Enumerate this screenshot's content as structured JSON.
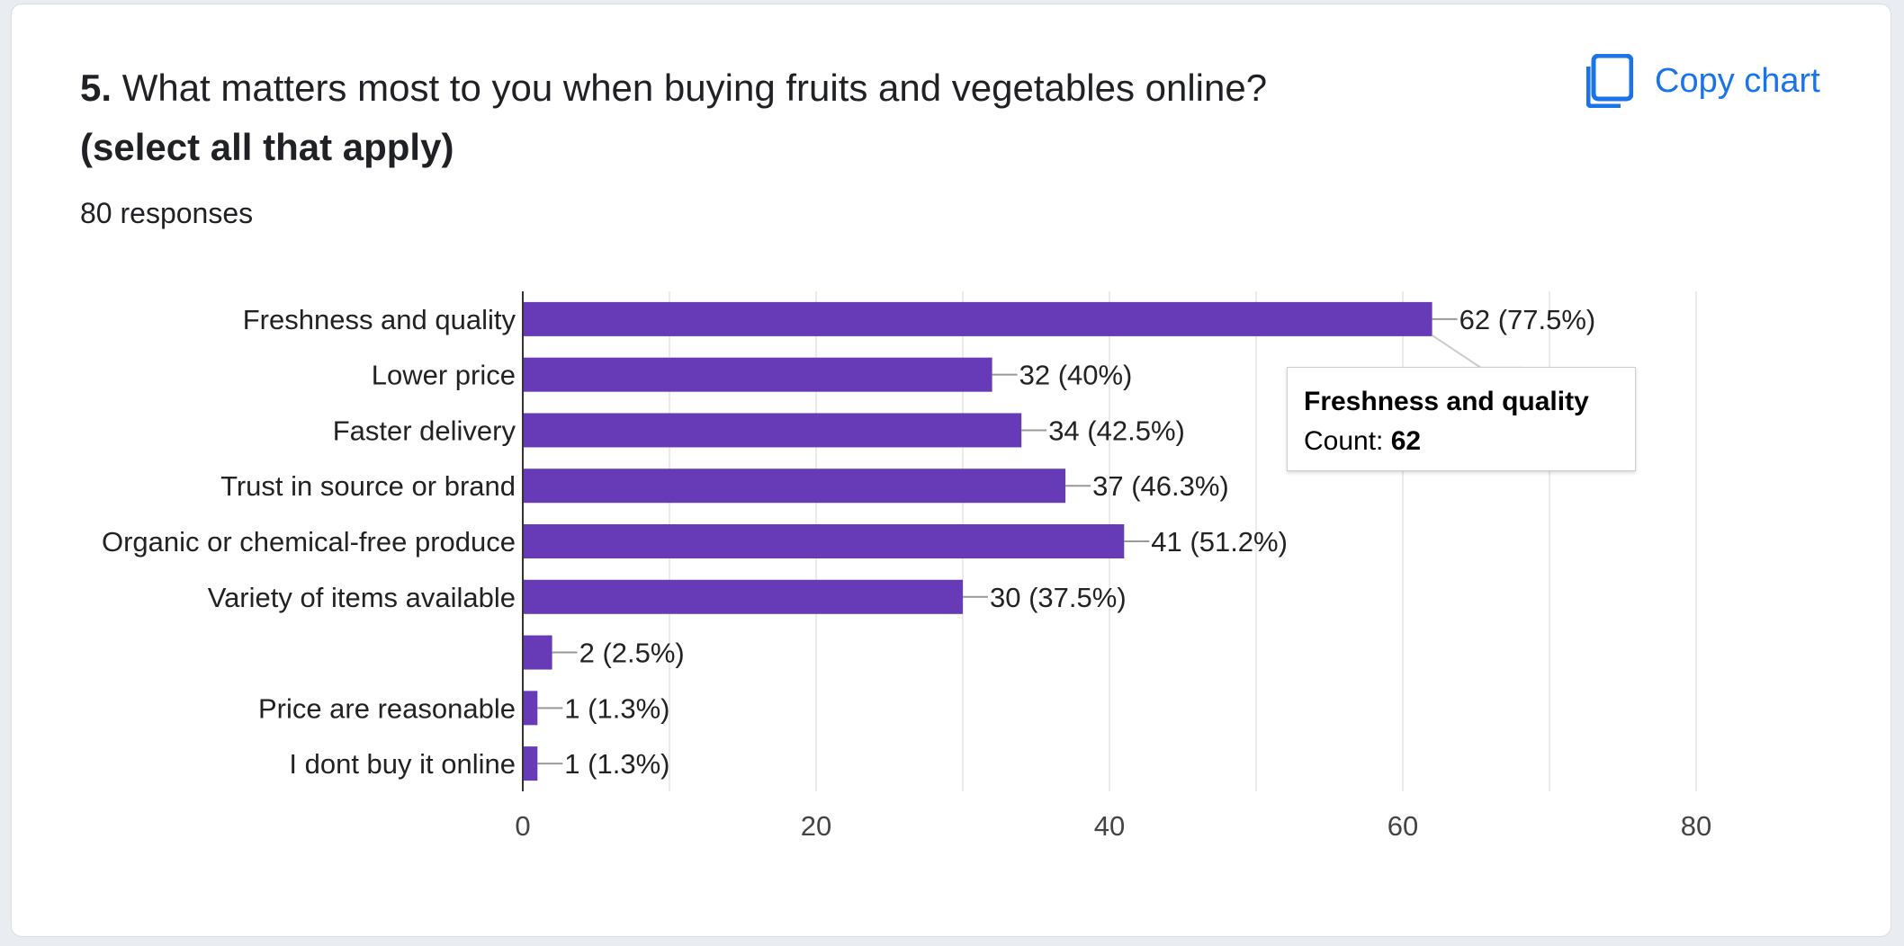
{
  "question": {
    "number": "5.",
    "text": "What matters most to you when buying fruits and vegetables online?",
    "subtext": "(select all that apply)"
  },
  "responses_label": "80 responses",
  "copy_button": {
    "label": "Copy chart",
    "icon": "copy-icon"
  },
  "tooltip": {
    "title": "Freshness and quality",
    "count_label": "Count: ",
    "count_value": "62"
  },
  "colors": {
    "bar": "#673ab7",
    "accent": "#1a73e8"
  },
  "chart_data": {
    "type": "bar",
    "orientation": "horizontal",
    "categories": [
      "Freshness and quality",
      "Lower price",
      "Faster delivery",
      "Trust in source or brand",
      "Organic or chemical-free produce",
      "Variety of items available",
      "",
      "Price are reasonable",
      "I dont buy it online"
    ],
    "values": [
      62,
      32,
      34,
      37,
      41,
      30,
      2,
      1,
      1
    ],
    "labels": [
      "62 (77.5%)",
      "32 (40%)",
      "34 (42.5%)",
      "37 (46.3%)",
      "41 (51.2%)",
      "30 (37.5%)",
      "2 (2.5%)",
      "1 (1.3%)",
      "1 (1.3%)"
    ],
    "xlim": [
      0,
      80
    ],
    "xticks": [
      0,
      20,
      40,
      60,
      80
    ],
    "grid": true,
    "title": "",
    "xlabel": "",
    "ylabel": ""
  }
}
